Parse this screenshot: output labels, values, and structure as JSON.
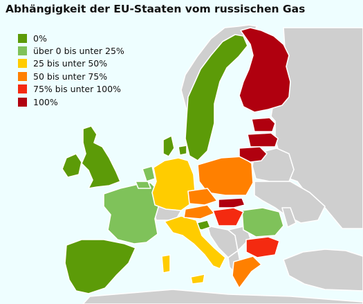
{
  "title": "Abhängigkeit der EU-Staaten vom russischen Gas",
  "colors": {
    "sea": "#eefeff",
    "non_eu": "#cfcfcf",
    "border": "#ffffff"
  },
  "legend": [
    {
      "label": "0%",
      "color": "#5c9b08"
    },
    {
      "label": "über 0 bis unter 25%",
      "color": "#7fc25a"
    },
    {
      "label": "25 bis unter 50%",
      "color": "#ffcc00"
    },
    {
      "label": "50 bis unter 75%",
      "color": "#ff8000"
    },
    {
      "label": "75% bis unter 100%",
      "color": "#f42a10"
    },
    {
      "label": "100%",
      "color": "#b0000f"
    }
  ]
}
